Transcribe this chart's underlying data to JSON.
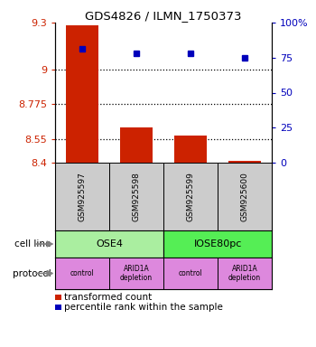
{
  "title": "GDS4826 / ILMN_1750373",
  "samples": [
    "GSM925597",
    "GSM925598",
    "GSM925599",
    "GSM925600"
  ],
  "bar_values": [
    9.28,
    8.625,
    8.575,
    8.41
  ],
  "bar_base": 8.4,
  "percentile_values": [
    81,
    78,
    78,
    75
  ],
  "ylim_left": [
    8.4,
    9.3
  ],
  "yticks_left": [
    8.4,
    8.55,
    8.775,
    9.0,
    9.3
  ],
  "ytick_labels_left": [
    "8.4",
    "8.55",
    "8.775",
    "9",
    "9.3"
  ],
  "yticks_right": [
    0,
    25,
    50,
    75,
    100
  ],
  "ytick_labels_right": [
    "0",
    "25",
    "50",
    "75",
    "100%"
  ],
  "hlines": [
    9.0,
    8.775,
    8.55
  ],
  "bar_color": "#cc2200",
  "point_color": "#0000bb",
  "cell_line_labels": [
    "OSE4",
    "IOSE80pc"
  ],
  "cell_line_spans": [
    [
      0,
      2
    ],
    [
      2,
      4
    ]
  ],
  "cell_line_colors": [
    "#aaeea0",
    "#55ee55"
  ],
  "protocol_labels": [
    "control",
    "ARID1A\ndepletion",
    "control",
    "ARID1A\ndepletion"
  ],
  "protocol_color": "#dd88dd",
  "label_color_left": "#cc2200",
  "label_color_right": "#0000bb",
  "sample_box_color": "#cccccc",
  "legend_red_label": "transformed count",
  "legend_blue_label": "percentile rank within the sample"
}
